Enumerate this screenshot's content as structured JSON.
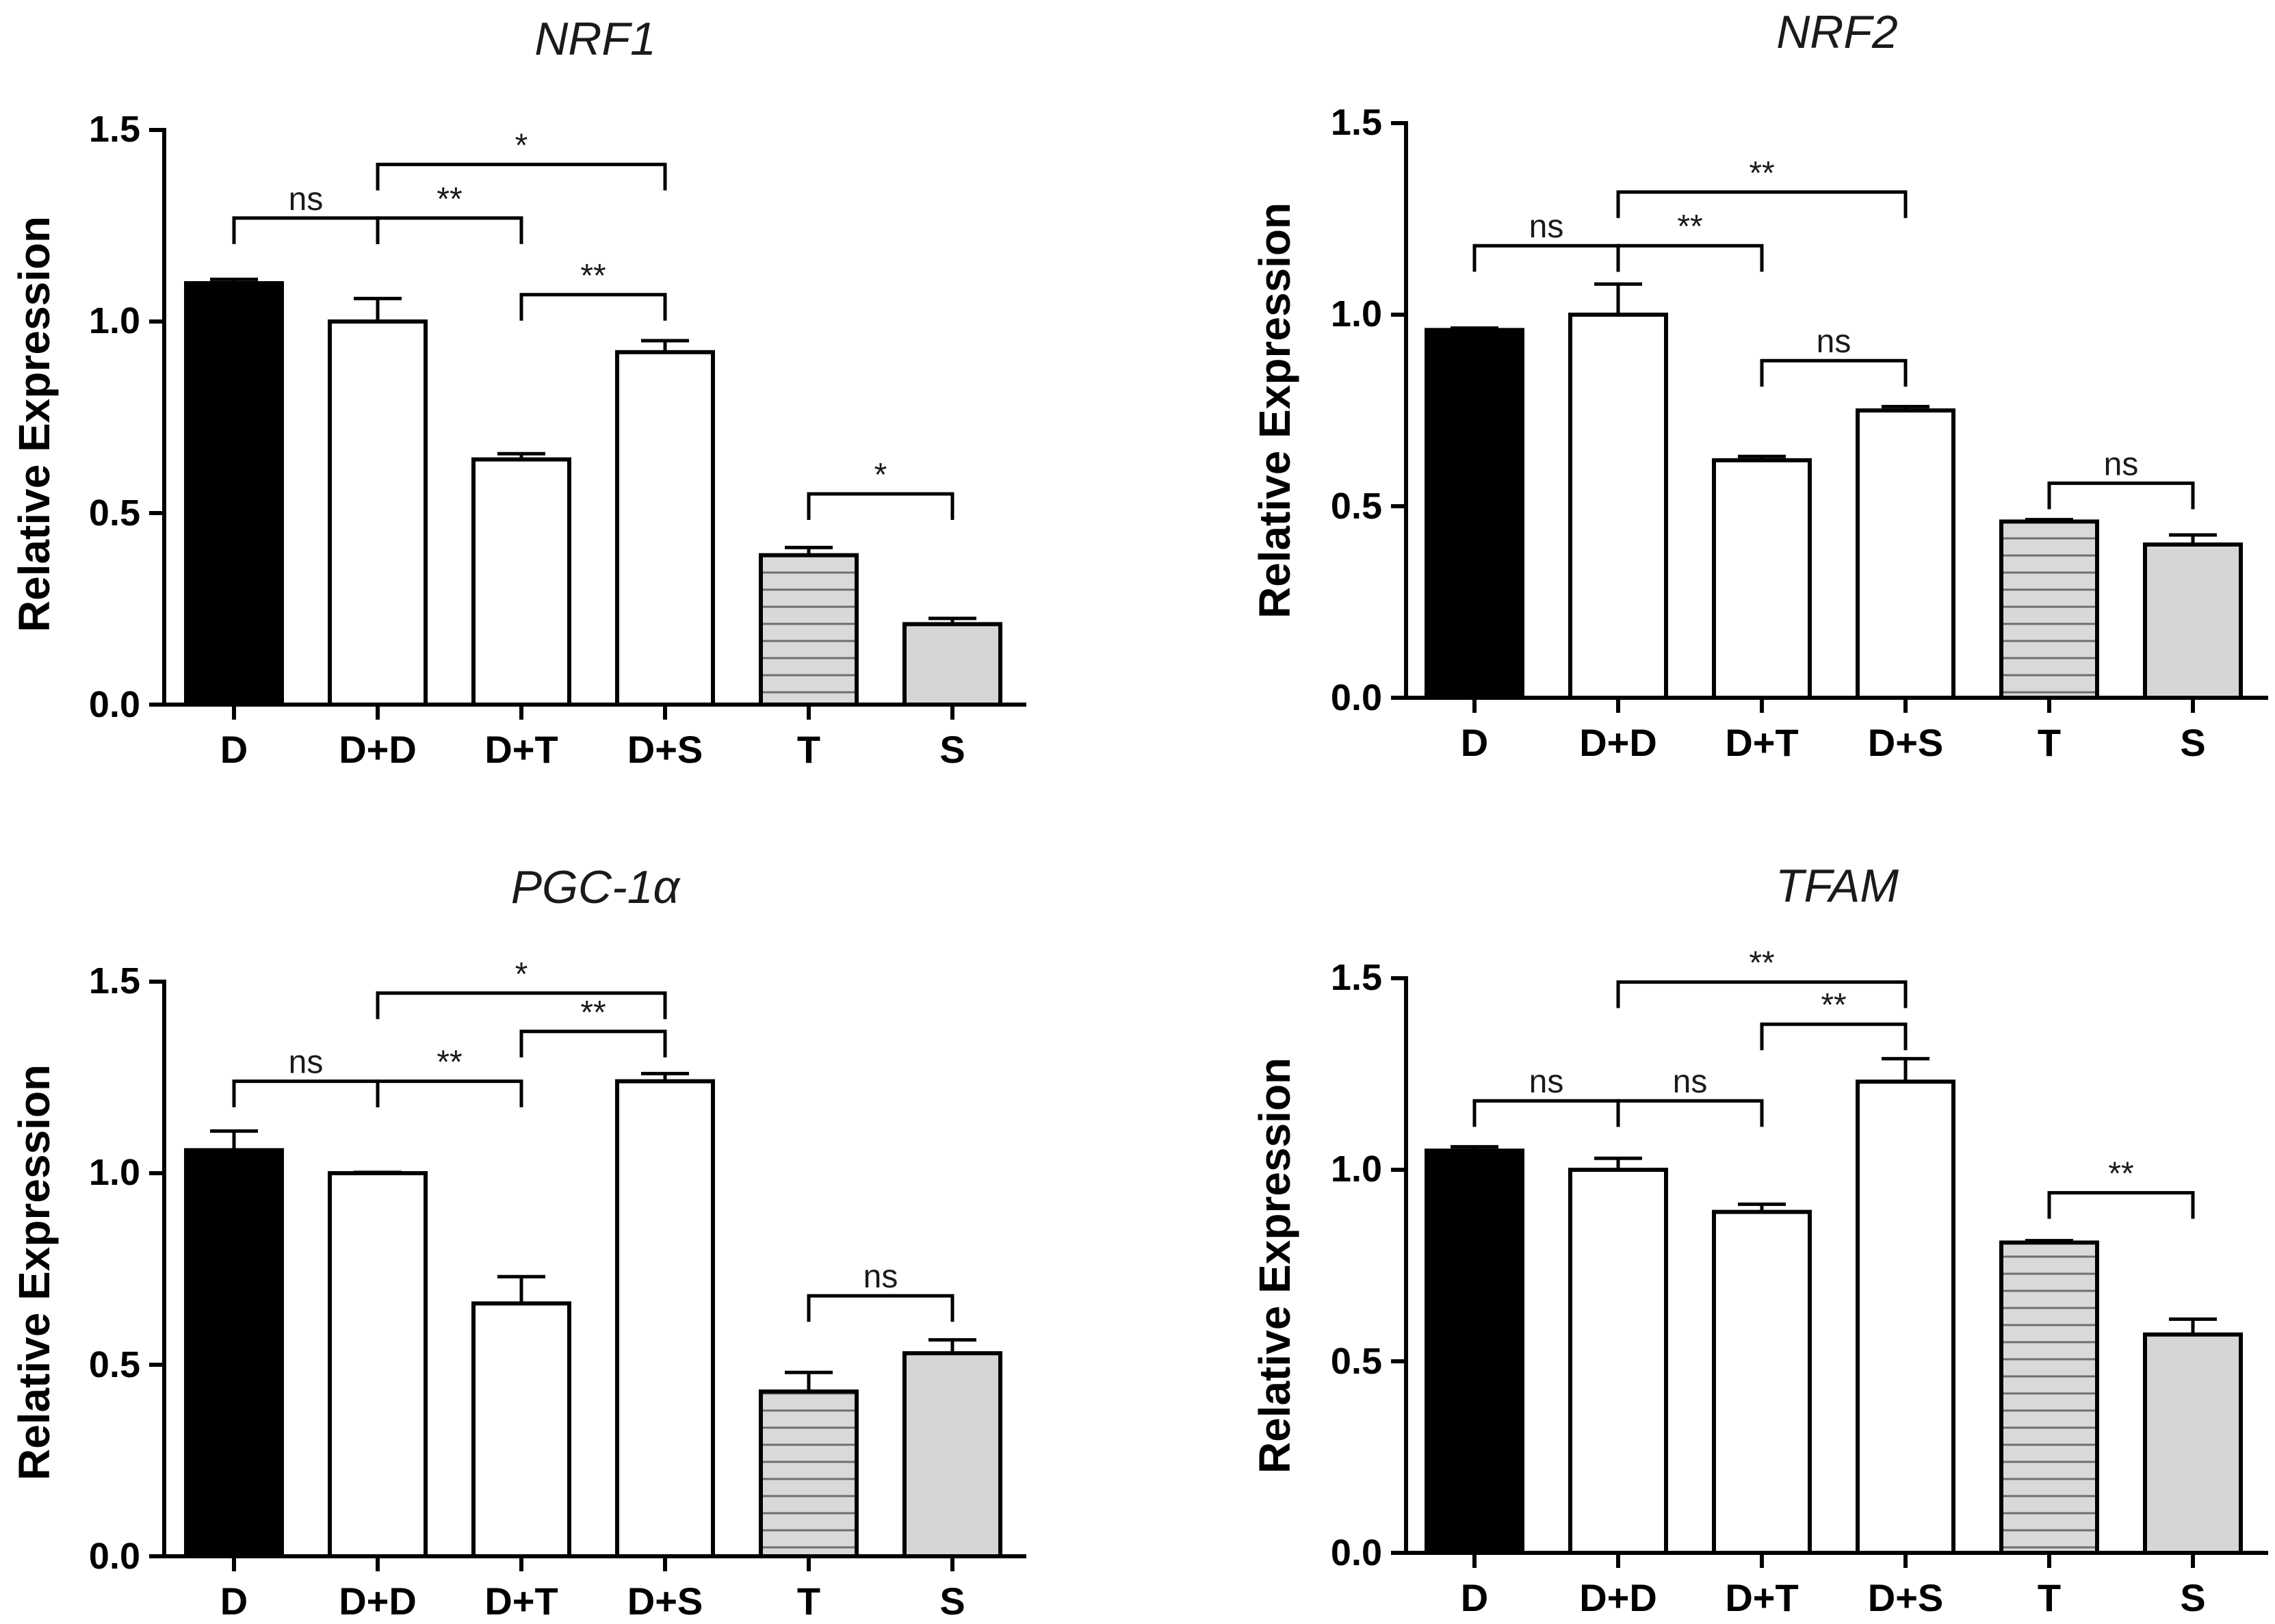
{
  "colors": {
    "black_fill": "#000000",
    "open_fill": "#ffffff",
    "hatch_fill": "#d9d9d9",
    "gray_fill": "#d6d6d6",
    "stroke": "#000000"
  },
  "chart_data": [
    {
      "type": "bar",
      "title": "NRF1",
      "ylabel": "Relative Expression",
      "xlabel": "",
      "ylim": [
        0,
        1.5
      ],
      "yticks": [
        "0.0",
        "0.5",
        "1.0",
        "1.5"
      ],
      "categories": [
        "D",
        "D+D",
        "D+T",
        "D+S",
        "T",
        "S"
      ],
      "values": [
        1.1,
        1.0,
        0.64,
        0.92,
        0.39,
        0.21
      ],
      "errors": [
        0.01,
        0.06,
        0.015,
        0.03,
        0.02,
        0.015
      ],
      "fills": [
        "black",
        "open",
        "open",
        "open",
        "hatch",
        "gray"
      ],
      "comparisons": [
        {
          "from": 0,
          "to": 1,
          "y": 1.27,
          "label": "ns"
        },
        {
          "from": 1,
          "to": 2,
          "y": 1.27,
          "label": "**"
        },
        {
          "from": 1,
          "to": 3,
          "y": 1.41,
          "label": "*"
        },
        {
          "from": 2,
          "to": 3,
          "y": 1.07,
          "label": "**"
        },
        {
          "from": 4,
          "to": 5,
          "y": 0.55,
          "label": "*"
        }
      ]
    },
    {
      "type": "bar",
      "title": "NRF2",
      "ylabel": "Relative Expression",
      "xlabel": "",
      "ylim": [
        0,
        1.5
      ],
      "yticks": [
        "0.0",
        "0.5",
        "1.0",
        "1.5"
      ],
      "categories": [
        "D",
        "D+D",
        "D+T",
        "D+S",
        "T",
        "S"
      ],
      "values": [
        0.96,
        1.0,
        0.62,
        0.75,
        0.46,
        0.4
      ],
      "errors": [
        0.005,
        0.08,
        0.01,
        0.01,
        0.005,
        0.025
      ],
      "fills": [
        "black",
        "open",
        "open",
        "open",
        "hatch",
        "gray"
      ],
      "comparisons": [
        {
          "from": 0,
          "to": 1,
          "y": 1.18,
          "label": "ns"
        },
        {
          "from": 1,
          "to": 2,
          "y": 1.18,
          "label": "**"
        },
        {
          "from": 1,
          "to": 3,
          "y": 1.32,
          "label": "**"
        },
        {
          "from": 2,
          "to": 3,
          "y": 0.88,
          "label": "ns"
        },
        {
          "from": 4,
          "to": 5,
          "y": 0.56,
          "label": "ns"
        }
      ]
    },
    {
      "type": "bar",
      "title": "PGC-1α",
      "ylabel": "Relative Expression",
      "xlabel": "",
      "ylim": [
        0,
        1.5
      ],
      "yticks": [
        "0.0",
        "0.5",
        "1.0",
        "1.5"
      ],
      "categories": [
        "D",
        "D+D",
        "D+T",
        "D+S",
        "T",
        "S"
      ],
      "values": [
        1.06,
        1.0,
        0.66,
        1.24,
        0.43,
        0.53
      ],
      "errors": [
        0.05,
        0.002,
        0.07,
        0.02,
        0.05,
        0.035
      ],
      "fills": [
        "black",
        "open",
        "open",
        "open",
        "hatch",
        "gray"
      ],
      "comparisons": [
        {
          "from": 0,
          "to": 1,
          "y": 1.24,
          "label": "ns"
        },
        {
          "from": 1,
          "to": 2,
          "y": 1.24,
          "label": "**"
        },
        {
          "from": 1,
          "to": 3,
          "y": 1.47,
          "label": "*"
        },
        {
          "from": 2,
          "to": 3,
          "y": 1.37,
          "label": "**"
        },
        {
          "from": 4,
          "to": 5,
          "y": 0.68,
          "label": "ns"
        }
      ]
    },
    {
      "type": "bar",
      "title": "TFAM",
      "ylabel": "Relative Expression",
      "xlabel": "",
      "ylim": [
        0,
        1.5
      ],
      "yticks": [
        "0.0",
        "0.5",
        "1.0",
        "1.5"
      ],
      "categories": [
        "D",
        "D+D",
        "D+T",
        "D+S",
        "T",
        "S"
      ],
      "values": [
        1.05,
        1.0,
        0.89,
        1.23,
        0.81,
        0.57
      ],
      "errors": [
        0.01,
        0.03,
        0.02,
        0.06,
        0.005,
        0.04
      ],
      "fills": [
        "black",
        "open",
        "open",
        "open",
        "hatch",
        "gray"
      ],
      "comparisons": [
        {
          "from": 0,
          "to": 1,
          "y": 1.18,
          "label": "ns"
        },
        {
          "from": 1,
          "to": 2,
          "y": 1.18,
          "label": "ns"
        },
        {
          "from": 1,
          "to": 3,
          "y": 1.49,
          "label": "**"
        },
        {
          "from": 2,
          "to": 3,
          "y": 1.38,
          "label": "**"
        },
        {
          "from": 4,
          "to": 5,
          "y": 0.94,
          "label": "**"
        }
      ]
    }
  ]
}
